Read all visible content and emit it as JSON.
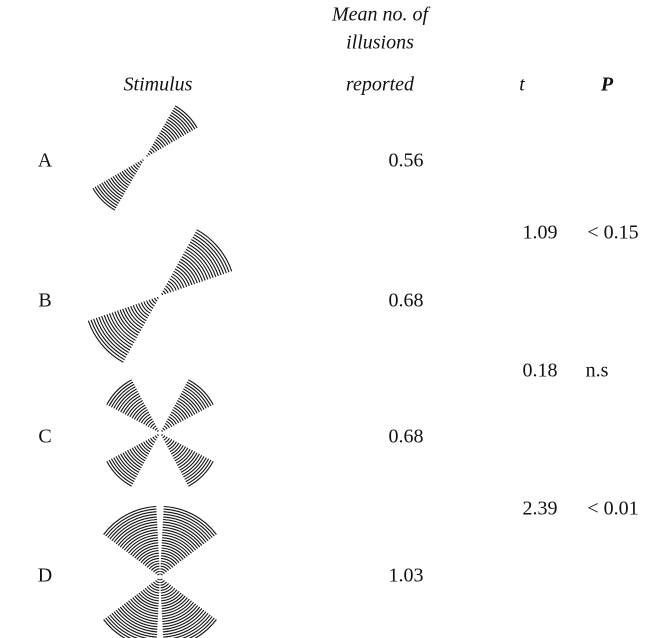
{
  "header": {
    "stimulus": "Stimulus",
    "mean": [
      "Mean no. of",
      "illusions",
      "reported"
    ],
    "t": "t",
    "p": "P"
  },
  "rows": [
    {
      "label": "A",
      "mean": "0.56"
    },
    {
      "label": "B",
      "mean": "0.68"
    },
    {
      "label": "C",
      "mean": "0.68"
    },
    {
      "label": "D",
      "mean": "1.03"
    }
  ],
  "comparisons": [
    {
      "t": "1.09",
      "p": "< 0.15"
    },
    {
      "t": "0.18",
      "p": "n.s"
    },
    {
      "t": "2.39",
      "p": "< 0.01"
    }
  ]
}
